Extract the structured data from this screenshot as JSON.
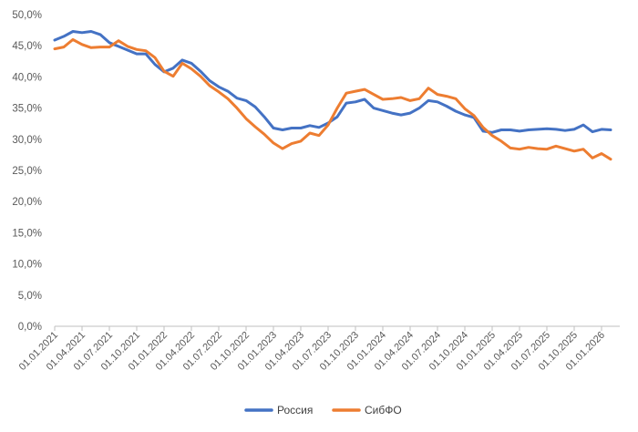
{
  "chart_data": {
    "type": "line",
    "title": "",
    "xlabel": "",
    "ylabel": "",
    "ylim": [
      0,
      50
    ],
    "y_ticks": [
      "0,0%",
      "5,0%",
      "10,0%",
      "15,0%",
      "20,0%",
      "25,0%",
      "30,0%",
      "35,0%",
      "40,0%",
      "45,0%",
      "50,0%"
    ],
    "x_ticks": [
      "01.01.2021",
      "01.04.2021",
      "01.07.2021",
      "01.10.2021",
      "01.01.2022",
      "01.04.2022",
      "01.07.2022",
      "01.10.2022",
      "01.01.2023",
      "01.04.2023",
      "01.07.2023",
      "01.10.2023",
      "01.01.2024",
      "01.04.2024",
      "01.07.2024",
      "01.10.2024",
      "01.01.2025",
      "01.04.2025",
      "01.07.2025",
      "01.10.2025",
      "01.01.2026"
    ],
    "x_start": "01.01.2021",
    "x_end": "01.03.2026",
    "grid": false,
    "legend_position": "bottom",
    "series": [
      {
        "name": "Россия",
        "color": "#4472C4",
        "values": [
          45.9,
          46.5,
          47.3,
          47.1,
          47.3,
          46.8,
          45.5,
          44.9,
          44.3,
          43.7,
          43.7,
          42.0,
          40.8,
          41.4,
          42.7,
          42.2,
          40.9,
          39.4,
          38.4,
          37.7,
          36.6,
          36.2,
          35.2,
          33.6,
          31.8,
          31.5,
          31.8,
          31.8,
          32.2,
          31.9,
          32.6,
          33.6,
          35.8,
          36.0,
          36.4,
          35.0,
          34.6,
          34.2,
          33.9,
          34.2,
          35.0,
          36.2,
          36.0,
          35.3,
          34.5,
          33.9,
          33.5,
          31.3,
          31.1,
          31.5,
          31.5,
          31.3,
          31.5,
          31.6,
          31.7,
          31.6,
          31.4,
          31.6,
          32.3,
          31.2,
          31.6,
          31.5
        ]
      },
      {
        "name": "СибФО",
        "color": "#ED7D31",
        "values": [
          44.5,
          44.8,
          46.0,
          45.2,
          44.7,
          44.8,
          44.8,
          45.8,
          44.9,
          44.4,
          44.2,
          43.1,
          40.9,
          40.1,
          42.2,
          41.3,
          40.1,
          38.6,
          37.6,
          36.5,
          35.0,
          33.3,
          32.0,
          30.8,
          29.4,
          28.5,
          29.3,
          29.7,
          31.0,
          30.6,
          32.3,
          35.0,
          37.4,
          37.7,
          38.0,
          37.2,
          36.4,
          36.5,
          36.7,
          36.2,
          36.5,
          38.2,
          37.2,
          36.9,
          36.5,
          34.9,
          33.8,
          31.9,
          30.6,
          29.7,
          28.6,
          28.4,
          28.7,
          28.5,
          28.4,
          28.9,
          28.5,
          28.1,
          28.4,
          27.0,
          27.7,
          26.8
        ]
      }
    ]
  }
}
